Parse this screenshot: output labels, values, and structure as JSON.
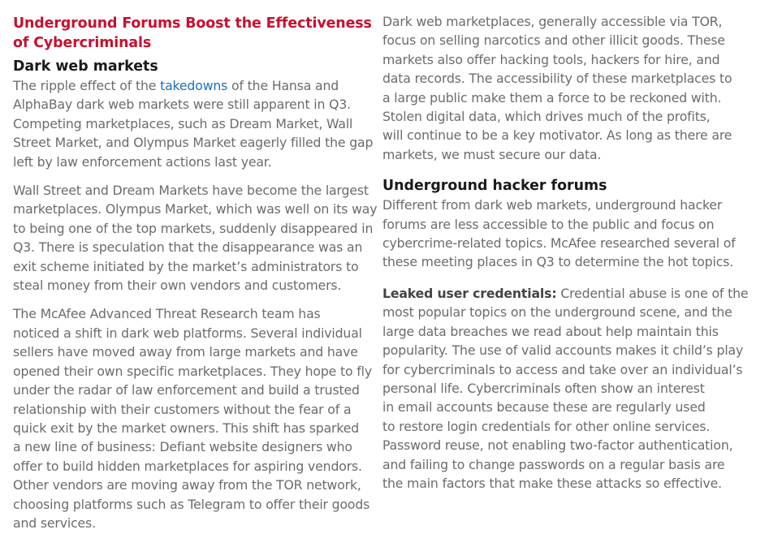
{
  "left": {
    "title_line1": "Underground Forums Boost the Effectiveness",
    "title_line2": "of Cybercriminals",
    "subhead": "Dark web markets",
    "p1": {
      "l1_a": "The ripple effect of the ",
      "l1_link": "takedowns",
      "l1_b": " of the Hansa and",
      "l2": "AlphaBay dark web markets were still apparent in Q3.",
      "l3": "Competing marketplaces, such as Dream Market, Wall",
      "l4": "Street Market, and Olympus Market eagerly filled the gap",
      "l5": "left by law enforcement actions last year."
    },
    "p2": [
      "Wall Street and Dream Markets have become the largest",
      "marketplaces. Olympus Market, which was well on its way",
      "to being one of the top markets, suddenly disappeared in",
      "Q3. There is speculation that the disappearance was an",
      "exit scheme initiated by the market’s administrators to",
      "steal money from their own vendors and customers."
    ],
    "p3": [
      "The McAfee Advanced Threat Research team has",
      "noticed a shift in dark web platforms. Several individual",
      "sellers have moved away from large markets and have",
      "opened their own specific marketplaces. They hope to fly",
      "under the radar of law enforcement and build a trusted",
      "relationship with their customers without the fear of a",
      "quick exit by the market owners. This shift has sparked",
      "a new line of business: Defiant website designers who",
      "offer to build hidden marketplaces for aspiring vendors.",
      "Other vendors are moving away from the TOR network,",
      "choosing platforms such as Telegram to offer their goods",
      "and services."
    ]
  },
  "right": {
    "p1": [
      "Dark web marketplaces, generally accessible via TOR,",
      "focus on selling narcotics and other illicit goods. These",
      "markets also offer hacking tools, hackers for hire, and",
      "data records. The accessibility of these marketplaces to",
      "a large public make them a force to be reckoned with.",
      "Stolen digital data, which drives much of the profits,",
      "will continue to be a key motivator. As long as there are",
      "markets, we must secure our data."
    ],
    "subhead": "Underground hacker forums",
    "p2": [
      "Different from dark web markets, underground hacker",
      "forums are less accessible to the public and focus on",
      "cybercrime-related topics. McAfee researched several of",
      "these meeting places in Q3 to determine the hot topics."
    ],
    "p3": {
      "label": "Leaked user credentials:",
      "l1_rest": " Credential abuse is one of the",
      "lines": [
        "most popular topics on the underground scene, and the",
        "large data breaches we read about help maintain this",
        "popularity. The use of valid accounts makes it child’s play",
        "for cybercriminals to access and take over an individual’s",
        "personal life. Cybercriminals often show an interest",
        "in email accounts because these are regularly used",
        "to restore login credentials for other online services.",
        "Password reuse, not enabling two-factor authentication,",
        "and failing to change passwords on a regular basis are",
        "the main factors that make these attacks so effective."
      ]
    }
  }
}
